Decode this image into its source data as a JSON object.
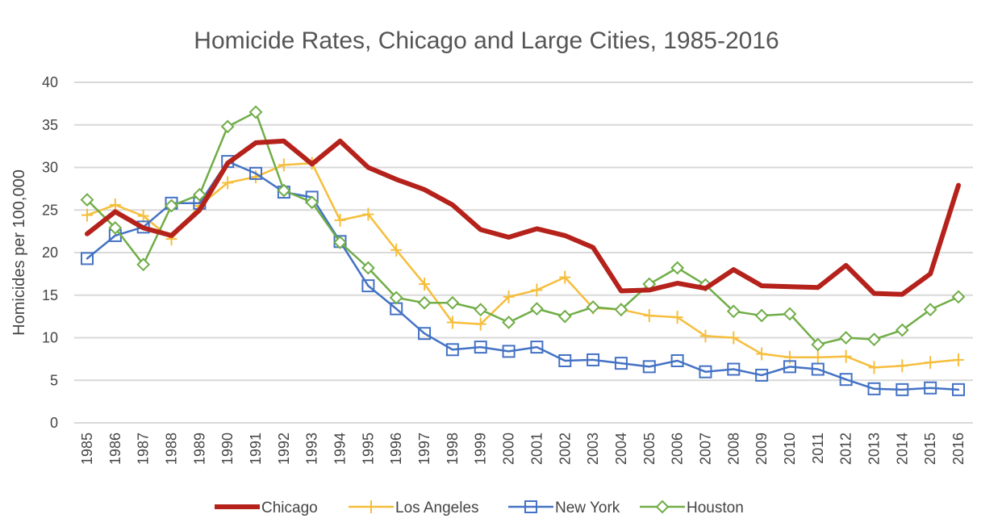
{
  "chart_data": {
    "type": "line",
    "title": "Homicide Rates, Chicago and Large Cities, 1985-2016",
    "xlabel": "",
    "ylabel": "Homicides per 100,000",
    "ylim": [
      0,
      40
    ],
    "yticks": [
      0,
      5,
      10,
      15,
      20,
      25,
      30,
      35,
      40
    ],
    "grid": true,
    "legend_position": "bottom",
    "x": [
      "1985",
      "1986",
      "1987",
      "1988",
      "1989",
      "1990",
      "1991",
      "1992",
      "1993",
      "1994",
      "1995",
      "1996",
      "1997",
      "1998",
      "1999",
      "2000",
      "2001",
      "2002",
      "2003",
      "2004",
      "2005",
      "2006",
      "2007",
      "2008",
      "2009",
      "2010",
      "2011",
      "2012",
      "2013",
      "2014",
      "2015",
      "2016"
    ],
    "series": [
      {
        "name": "Chicago",
        "color": "#b5221b",
        "marker": "none",
        "values": [
          22.2,
          24.8,
          22.9,
          22.0,
          25.0,
          30.5,
          32.9,
          33.1,
          30.4,
          33.1,
          30.0,
          28.6,
          27.4,
          25.6,
          22.7,
          21.8,
          22.8,
          22.0,
          20.6,
          15.5,
          15.6,
          16.4,
          15.8,
          18.0,
          16.1,
          16.0,
          15.9,
          18.5,
          15.2,
          15.1,
          17.5,
          27.9
        ]
      },
      {
        "name": "Los Angeles",
        "color": "#f5be3c",
        "marker": "plus",
        "values": [
          24.4,
          25.6,
          24.3,
          21.6,
          25.5,
          28.2,
          28.9,
          30.3,
          30.5,
          23.8,
          24.5,
          20.3,
          16.3,
          11.8,
          11.6,
          14.8,
          15.6,
          17.1,
          13.5,
          13.3,
          12.6,
          12.4,
          10.2,
          10.0,
          8.1,
          7.7,
          7.7,
          7.8,
          6.5,
          6.7,
          7.1,
          7.4
        ]
      },
      {
        "name": "New York",
        "color": "#4472c4",
        "marker": "square",
        "values": [
          19.3,
          22.0,
          23.0,
          25.8,
          25.8,
          30.7,
          29.3,
          27.1,
          26.5,
          21.3,
          16.1,
          13.4,
          10.5,
          8.6,
          8.9,
          8.4,
          8.9,
          7.3,
          7.4,
          7.0,
          6.6,
          7.3,
          6.0,
          6.3,
          5.6,
          6.6,
          6.3,
          5.1,
          4.0,
          3.9,
          4.1,
          3.9
        ]
      },
      {
        "name": "Houston",
        "color": "#70ad47",
        "marker": "diamond",
        "values": [
          26.2,
          22.9,
          18.6,
          25.5,
          26.8,
          34.8,
          36.5,
          27.3,
          25.9,
          21.2,
          18.2,
          14.7,
          14.1,
          14.1,
          13.3,
          11.8,
          13.4,
          12.5,
          13.6,
          13.3,
          16.3,
          18.2,
          16.2,
          13.1,
          12.6,
          12.8,
          9.2,
          10.0,
          9.8,
          10.9,
          13.3,
          14.8
        ]
      }
    ]
  }
}
